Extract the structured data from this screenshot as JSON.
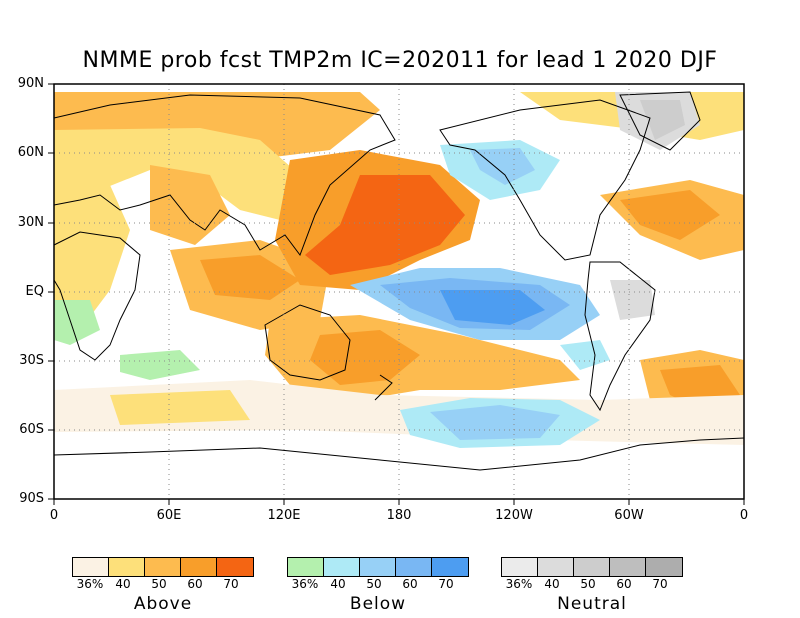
{
  "title": "NMME prob fcst TMP2m IC=202011 for lead 1 2020 DJF",
  "lat_labels": [
    "90N",
    "60N",
    "30N",
    "EQ",
    "30S",
    "60S",
    "90S"
  ],
  "lon_labels": [
    "0",
    "60E",
    "120E",
    "180",
    "120W",
    "60W",
    "0"
  ],
  "legends": [
    {
      "title": "Above",
      "labels": [
        "36%",
        "40",
        "50",
        "60",
        "70"
      ],
      "colors": [
        "#fbf2e4",
        "#fde07a",
        "#fdbb4f",
        "#f89e2a",
        "#f46513"
      ]
    },
    {
      "title": "Below",
      "labels": [
        "36%",
        "40",
        "50",
        "60",
        "70"
      ],
      "colors": [
        "#b4f0ae",
        "#aeeaf6",
        "#97d0f6",
        "#79b7f3",
        "#4d9df1"
      ]
    },
    {
      "title": "Neutral",
      "labels": [
        "36%",
        "40",
        "50",
        "60",
        "70"
      ],
      "colors": [
        "#ebebeb",
        "#dcdcdc",
        "#cdcdcd",
        "#bebebe",
        "#adadad"
      ]
    }
  ]
}
